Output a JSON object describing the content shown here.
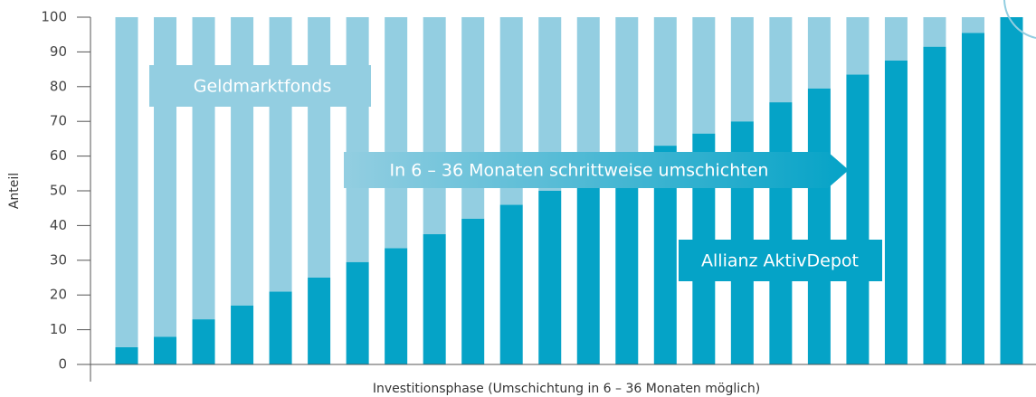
{
  "chart_data": {
    "type": "stacked_bar",
    "y_label": "Anteil",
    "x_label": "Investitionsphase (Umschichtung in 6 – 36 Monaten möglich)",
    "annotations": [
      "Geldmarktfonds",
      "In 6 – 36 Monaten schrittweise umschichten",
      "Allianz AktivDepot"
    ],
    "categories": [
      null,
      null,
      null,
      null,
      null,
      null,
      null,
      null,
      null,
      null,
      null,
      null,
      null,
      null,
      null,
      null,
      null,
      null,
      null,
      null,
      null,
      null,
      null,
      null
    ],
    "series": [
      {
        "name": "Allianz AktivDepot",
        "color": "#05a3c7",
        "values": [
          5,
          8,
          13,
          17,
          21,
          25,
          29.5,
          33.5,
          37.5,
          42,
          46,
          50,
          54,
          58,
          63,
          66.5,
          70,
          75.5,
          79.5,
          83.5,
          87.5,
          91.5,
          95.5,
          100
        ]
      },
      {
        "name": "Geldmarktfonds",
        "color": "#93cee1",
        "values": [
          95,
          92,
          87,
          83,
          79,
          75,
          70.5,
          66.5,
          62.5,
          58,
          54,
          50,
          46,
          42,
          37,
          33.5,
          30,
          24.5,
          20.5,
          16.5,
          12.5,
          8.5,
          4.5,
          0
        ]
      }
    ],
    "ylim": [
      0,
      100
    ],
    "yticks": [
      0,
      10,
      20,
      30,
      40,
      50,
      60,
      70,
      80,
      90,
      100
    ]
  }
}
